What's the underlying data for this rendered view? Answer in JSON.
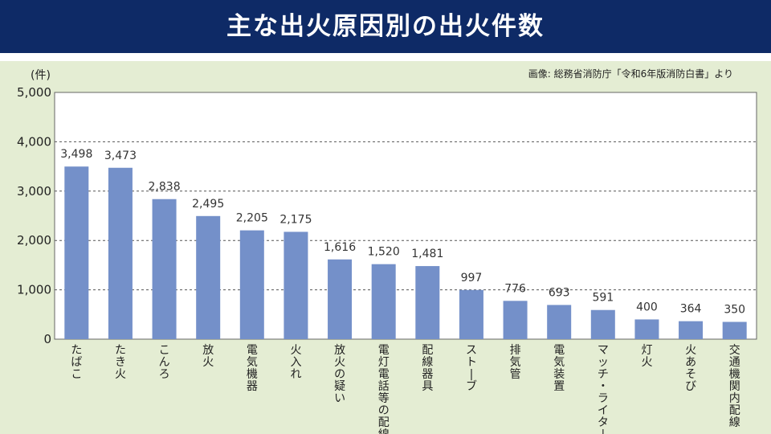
{
  "header": {
    "title": "主な出火原因別の出火件数"
  },
  "chart_data": {
    "type": "bar",
    "title": "主な出火原因別の出火件数",
    "ylabel": "(件)",
    "xlabel": "",
    "ylim": [
      0,
      5000
    ],
    "yticks": [
      0,
      1000,
      2000,
      3000,
      4000,
      5000
    ],
    "ytick_labels": [
      "0",
      "1,000",
      "2,000",
      "3,000",
      "4,000",
      "5,000"
    ],
    "source": "画像: 総務省消防庁「令和6年版消防白書」より",
    "bar_color": "#7490c9",
    "grid": "dashed horizontal",
    "categories": [
      "たばこ",
      "たき火",
      "こんろ",
      "放火",
      "電気機器",
      "火入れ",
      "放火の疑い",
      "電灯電話等の配線",
      "配線器具",
      "ストーブ",
      "排気管",
      "電気装置",
      "マッチ・ライター",
      "灯火",
      "火あそび",
      "交通機関内配線"
    ],
    "values": [
      3498,
      3473,
      2838,
      2495,
      2205,
      2175,
      1616,
      1520,
      1481,
      997,
      776,
      693,
      591,
      400,
      364,
      350
    ],
    "value_labels": [
      "3,498",
      "3,473",
      "2,838",
      "2,495",
      "2,205",
      "2,175",
      "1,616",
      "1,520",
      "1,481",
      "997",
      "776",
      "693",
      "591",
      "400",
      "364",
      "350"
    ]
  }
}
